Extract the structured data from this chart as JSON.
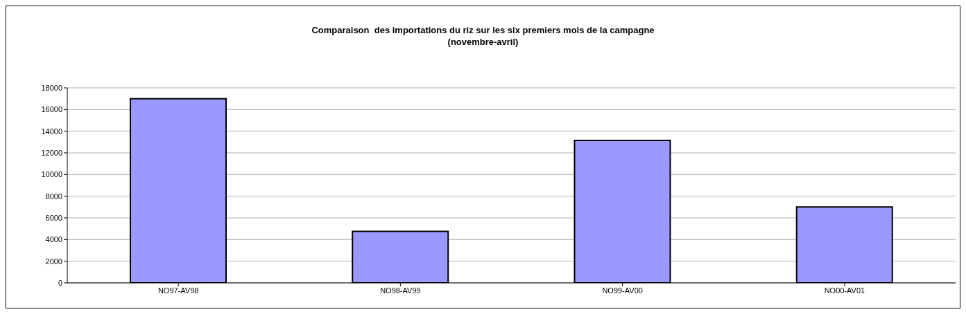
{
  "chart_data": {
    "type": "bar",
    "title": "Comparaison  des importations du riz sur les six premiers mois de la campagne",
    "subtitle": "(novembre-avril)",
    "categories": [
      "NO97-AV98",
      "NO98-AV99",
      "NO99-AV00",
      "NO00-AV01"
    ],
    "values": [
      17000,
      4750,
      13150,
      7000
    ],
    "color": "#9999ff",
    "ylim": [
      0,
      18000
    ],
    "yticks": [
      0,
      2000,
      4000,
      6000,
      8000,
      10000,
      12000,
      14000,
      16000,
      18000
    ],
    "grid": "y",
    "legend": false
  }
}
